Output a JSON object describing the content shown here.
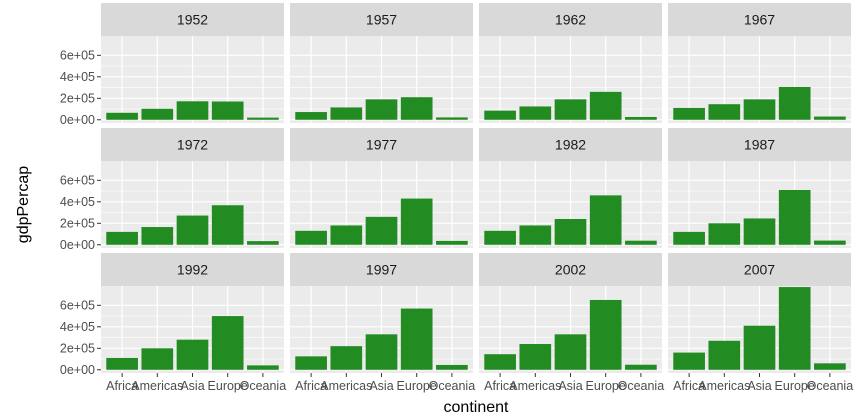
{
  "chart_data": {
    "type": "bar",
    "title": "",
    "xlabel": "continent",
    "ylabel": "gdpPercap",
    "ylim": [
      -30000,
      780000
    ],
    "y_ticks": [
      0,
      200000,
      400000,
      600000
    ],
    "y_tick_labels": [
      "0e+00",
      "2e+05",
      "4e+05",
      "6e+05"
    ],
    "categories": [
      "Africa",
      "Americas",
      "Asia",
      "Europe",
      "Oceania"
    ],
    "grid": true,
    "legend": "none",
    "bar_color": "#228B22",
    "panel_bg": "#EBEBEB",
    "strip_bg": "#D9D9D9",
    "facets": [
      {
        "label": "1952",
        "values": [
          65000,
          102000,
          172000,
          170000,
          20000
        ]
      },
      {
        "label": "1957",
        "values": [
          72000,
          115000,
          190000,
          210000,
          22000
        ]
      },
      {
        "label": "1962",
        "values": [
          85000,
          124000,
          190000,
          260000,
          26000
        ]
      },
      {
        "label": "1967",
        "values": [
          110000,
          145000,
          190000,
          305000,
          30000
        ]
      },
      {
        "label": "1972",
        "values": [
          120000,
          165000,
          272000,
          368000,
          34000
        ]
      },
      {
        "label": "1977",
        "values": [
          130000,
          180000,
          260000,
          430000,
          36000
        ]
      },
      {
        "label": "1982",
        "values": [
          130000,
          180000,
          240000,
          460000,
          38000
        ]
      },
      {
        "label": "1987",
        "values": [
          120000,
          200000,
          245000,
          510000,
          39000
        ]
      },
      {
        "label": "1992",
        "values": [
          110000,
          200000,
          280000,
          500000,
          41000
        ]
      },
      {
        "label": "1997",
        "values": [
          125000,
          220000,
          330000,
          570000,
          45000
        ]
      },
      {
        "label": "2002",
        "values": [
          145000,
          240000,
          330000,
          650000,
          47000
        ]
      },
      {
        "label": "2007",
        "values": [
          160000,
          270000,
          410000,
          770000,
          60000
        ]
      }
    ]
  }
}
